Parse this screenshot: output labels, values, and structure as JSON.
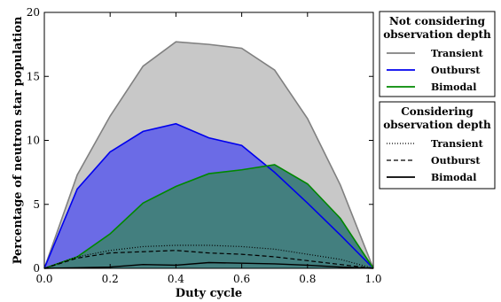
{
  "chart_data": {
    "type": "area",
    "xlabel": "Duty cycle",
    "ylabel": "Percentage of neutron star population",
    "xlim": [
      0.0,
      1.0
    ],
    "ylim": [
      0,
      20
    ],
    "xticks": [
      "0.0",
      "0.2",
      "0.4",
      "0.6",
      "0.8",
      "1.0"
    ],
    "yticks": [
      "0",
      "5",
      "10",
      "15",
      "20"
    ],
    "grid": false,
    "x": [
      0.0,
      0.1,
      0.2,
      0.3,
      0.4,
      0.5,
      0.6,
      0.7,
      0.8,
      0.9,
      1.0
    ],
    "legend_groups": [
      {
        "title_lines": [
          "Not considering",
          "observation depth"
        ],
        "entries": [
          "Transient",
          "Outburst",
          "Bimodal"
        ]
      },
      {
        "title_lines": [
          "Considering",
          "observation depth"
        ],
        "entries": [
          "Transient",
          "Outburst",
          "Bimodal"
        ]
      }
    ],
    "series": [
      {
        "name": "Transient",
        "group": "Not considering observation depth",
        "style": "solid",
        "color": "#808080",
        "fill": "#c8c8c8",
        "values": [
          0.0,
          7.3,
          11.9,
          15.8,
          17.7,
          17.5,
          17.2,
          15.5,
          11.7,
          6.5,
          0.0
        ]
      },
      {
        "name": "Outburst",
        "group": "Not considering observation depth",
        "style": "solid",
        "color": "#0000ee",
        "fill": "#6b6be6",
        "values": [
          0.0,
          6.2,
          9.1,
          10.7,
          11.3,
          10.2,
          9.6,
          7.5,
          5.1,
          2.6,
          0.0
        ]
      },
      {
        "name": "Bimodal",
        "group": "Not considering observation depth",
        "style": "solid",
        "color": "#008800",
        "fill": "#437f7f",
        "values": [
          0.0,
          0.9,
          2.7,
          5.1,
          6.4,
          7.4,
          7.7,
          8.1,
          6.6,
          3.9,
          0.0
        ]
      },
      {
        "name": "Transient",
        "group": "Considering observation depth",
        "style": "dotted",
        "color": "#000000",
        "values": [
          0.0,
          0.9,
          1.4,
          1.7,
          1.8,
          1.8,
          1.7,
          1.5,
          1.1,
          0.7,
          0.0
        ]
      },
      {
        "name": "Outburst",
        "group": "Considering observation depth",
        "style": "dashed",
        "color": "#000000",
        "values": [
          0.0,
          0.8,
          1.2,
          1.3,
          1.4,
          1.2,
          1.1,
          0.9,
          0.6,
          0.3,
          0.0
        ]
      },
      {
        "name": "Bimodal",
        "group": "Considering observation depth",
        "style": "solid",
        "color": "#000000",
        "values": [
          0.0,
          0.05,
          0.1,
          0.3,
          0.25,
          0.45,
          0.4,
          0.35,
          0.25,
          0.1,
          0.0
        ]
      }
    ]
  }
}
